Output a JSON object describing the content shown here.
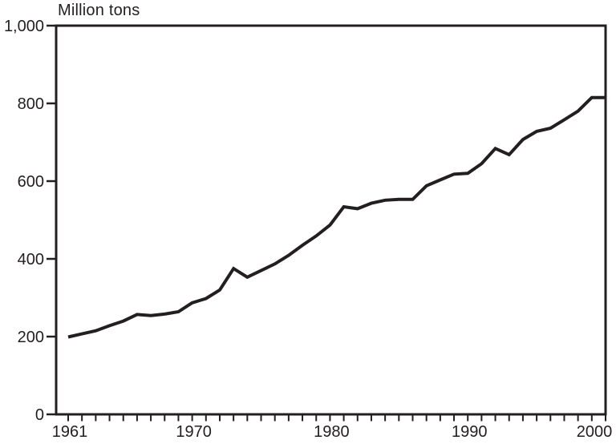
{
  "chart_data": {
    "type": "line",
    "title": "Million tons",
    "xlabel": "",
    "ylabel": "Million tons",
    "x": [
      1961,
      1962,
      1963,
      1964,
      1965,
      1966,
      1967,
      1968,
      1969,
      1970,
      1971,
      1972,
      1973,
      1974,
      1975,
      1976,
      1977,
      1978,
      1979,
      1980,
      1981,
      1982,
      1983,
      1984,
      1985,
      1986,
      1987,
      1988,
      1989,
      1990,
      1991,
      1992,
      1993,
      1994,
      1995,
      1996,
      1997,
      1998,
      1999,
      2000
    ],
    "values": [
      199,
      207,
      215,
      228,
      240,
      257,
      254,
      258,
      264,
      287,
      298,
      320,
      375,
      353,
      370,
      387,
      409,
      435,
      459,
      487,
      534,
      529,
      543,
      551,
      553,
      553,
      588,
      603,
      618,
      620,
      645,
      684,
      668,
      707,
      728,
      736,
      758,
      780,
      815,
      815
    ],
    "xlim": [
      1961,
      2000
    ],
    "ylim": [
      0,
      1000
    ],
    "y_ticks": [
      0,
      200,
      400,
      600,
      800,
      1000
    ],
    "y_tick_labels": [
      "0",
      "200",
      "400",
      "600",
      "800",
      "1,000"
    ],
    "x_labeled_ticks": [
      1961,
      1970,
      1980,
      1990,
      2000
    ],
    "x_tick_interval": 1,
    "grid": false,
    "legend": false,
    "line_color": "#231f20",
    "axis_color": "#231f20",
    "background_color": "#ffffff"
  }
}
